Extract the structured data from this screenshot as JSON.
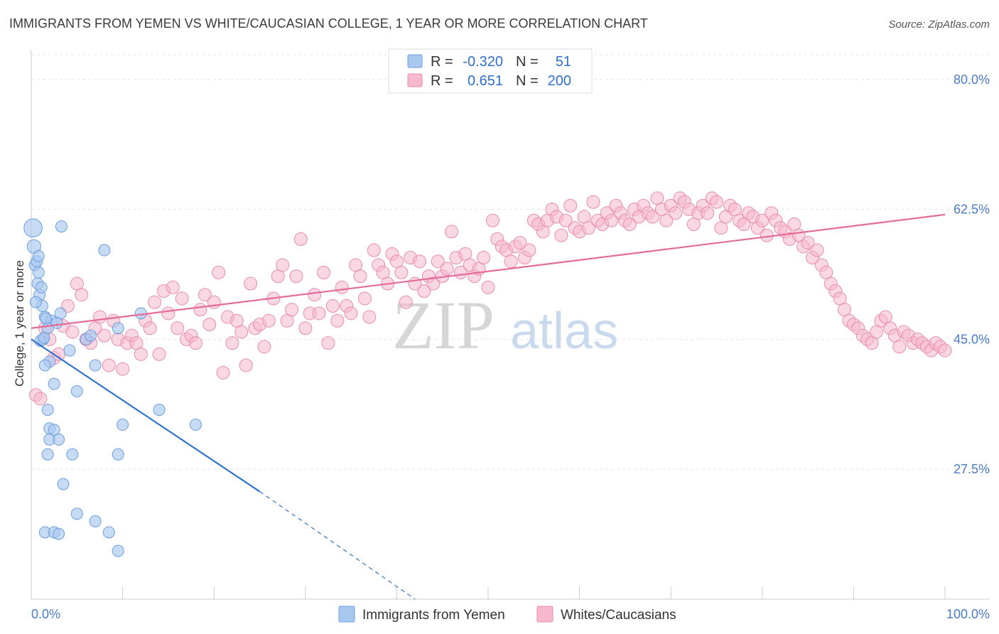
{
  "header": {
    "title": "IMMIGRANTS FROM YEMEN VS WHITE/CAUCASIAN COLLEGE, 1 YEAR OR MORE CORRELATION CHART",
    "source": "Source: ZipAtlas.com"
  },
  "watermark": {
    "zip": "ZIP",
    "atlas": "atlas"
  },
  "legend": {
    "rows": [
      {
        "r_label": "R =",
        "r_value": "-0.320",
        "n_label": "N =",
        "n_value": "51",
        "color": "#a9c8ef"
      },
      {
        "r_label": "R =",
        "r_value": "0.651",
        "n_label": "N =",
        "n_value": "200",
        "color": "#f6b8cc"
      }
    ]
  },
  "bottom_legend": {
    "items": [
      {
        "label": "Immigrants from Yemen",
        "color": "#a9c8ef"
      },
      {
        "label": "Whites/Caucasians",
        "color": "#f6b8cc"
      }
    ]
  },
  "chart_data": {
    "type": "scatter",
    "title": "IMMIGRANTS FROM YEMEN VS WHITE/CAUCASIAN COLLEGE, 1 YEAR OR MORE CORRELATION CHART",
    "xlabel": "",
    "ylabel": "College, 1 year or more",
    "xlim": [
      0,
      100
    ],
    "ylim": [
      10,
      84
    ],
    "x_ticks": [
      "0.0%",
      "100.0%"
    ],
    "y_ticks": [
      {
        "value": 80.0,
        "label": "80.0%"
      },
      {
        "value": 62.5,
        "label": "62.5%"
      },
      {
        "value": 45.0,
        "label": "45.0%"
      },
      {
        "value": 27.5,
        "label": "27.5%"
      }
    ],
    "grid": true,
    "legend_position": "top-center",
    "series": [
      {
        "name": "Immigrants from Yemen",
        "color": "#a9c8ef",
        "stroke": "#6d9fdd",
        "trend": {
          "x": [
            0,
            25
          ],
          "y": [
            45.0,
            24.5
          ],
          "dashed_to": [
            42,
            10
          ],
          "color": "#2f74d0"
        },
        "points": [
          [
            0.2,
            60.0,
            1.6
          ],
          [
            0.3,
            57.5,
            1.2
          ],
          [
            0.4,
            55.0,
            1
          ],
          [
            0.6,
            55.5,
            1
          ],
          [
            0.8,
            54.0,
            1
          ],
          [
            0.7,
            52.5,
            1
          ],
          [
            0.9,
            51.0,
            1
          ],
          [
            1.2,
            49.5,
            1
          ],
          [
            0.5,
            50.0,
            1
          ],
          [
            1.5,
            48.0,
            1
          ],
          [
            2.2,
            47.5,
            1
          ],
          [
            1.8,
            46.5,
            1
          ],
          [
            1.3,
            45.0,
            1
          ],
          [
            1.0,
            44.8,
            1
          ],
          [
            1.4,
            45.2,
            1
          ],
          [
            2.0,
            42.0,
            1
          ],
          [
            1.5,
            41.5,
            1
          ],
          [
            2.5,
            39.0,
            1
          ],
          [
            3.2,
            48.5,
            1
          ],
          [
            6.0,
            45.0,
            1
          ],
          [
            4.2,
            43.5,
            1
          ],
          [
            7.0,
            41.5,
            1
          ],
          [
            5.0,
            38.0,
            1
          ],
          [
            8.0,
            57.0,
            1
          ],
          [
            9.5,
            46.5,
            1
          ],
          [
            12.0,
            48.5,
            1
          ],
          [
            1.8,
            35.5,
            1
          ],
          [
            2.0,
            33.0,
            1
          ],
          [
            2.5,
            32.8,
            1
          ],
          [
            2.0,
            31.5,
            1
          ],
          [
            3.0,
            31.5,
            1
          ],
          [
            1.8,
            29.5,
            1
          ],
          [
            4.5,
            29.5,
            1
          ],
          [
            9.5,
            29.5,
            1
          ],
          [
            10.0,
            33.5,
            1
          ],
          [
            14.0,
            35.5,
            1
          ],
          [
            18.0,
            33.5,
            1
          ],
          [
            3.5,
            25.5,
            1
          ],
          [
            5.0,
            21.5,
            1
          ],
          [
            7.0,
            20.5,
            1
          ],
          [
            1.5,
            19.0,
            1
          ],
          [
            2.5,
            19.0,
            1
          ],
          [
            3.0,
            18.8,
            1
          ],
          [
            8.5,
            19.0,
            1
          ],
          [
            9.5,
            16.5,
            1
          ],
          [
            3.3,
            60.2,
            1
          ],
          [
            1.6,
            47.8,
            1
          ],
          [
            2.8,
            47.2,
            1
          ],
          [
            0.8,
            56.2,
            1
          ],
          [
            1.1,
            52.0,
            1
          ],
          [
            6.5,
            45.5,
            1
          ]
        ]
      },
      {
        "name": "Whites/Caucasians",
        "color": "#f6b8cc",
        "stroke": "#e98cab",
        "trend": {
          "x": [
            0,
            100
          ],
          "y": [
            46.5,
            61.8
          ],
          "color": "#e56b98"
        },
        "points": [
          [
            0.5,
            37.5
          ],
          [
            1.0,
            37.0
          ],
          [
            1.5,
            46.5
          ],
          [
            2.0,
            45.0
          ],
          [
            2.5,
            42.5
          ],
          [
            3.0,
            43.0
          ],
          [
            3.5,
            46.8
          ],
          [
            4.0,
            49.5
          ],
          [
            4.5,
            46.0
          ],
          [
            5.0,
            52.5
          ],
          [
            5.5,
            51.0
          ],
          [
            6.0,
            45.0
          ],
          [
            6.5,
            44.5
          ],
          [
            7.0,
            46.5
          ],
          [
            7.5,
            48.0
          ],
          [
            8.0,
            45.5
          ],
          [
            8.5,
            41.5
          ],
          [
            9.0,
            47.5
          ],
          [
            9.5,
            45.0
          ],
          [
            10.0,
            41.0
          ],
          [
            10.5,
            44.5
          ],
          [
            11.0,
            45.5
          ],
          [
            11.5,
            44.5
          ],
          [
            12.0,
            43.0
          ],
          [
            12.5,
            47.5
          ],
          [
            13.0,
            46.5
          ],
          [
            13.5,
            50.0
          ],
          [
            14.0,
            43.0
          ],
          [
            14.5,
            51.5
          ],
          [
            15.0,
            48.5
          ],
          [
            15.5,
            52.0
          ],
          [
            16.0,
            46.5
          ],
          [
            16.5,
            50.5
          ],
          [
            17.0,
            45.0
          ],
          [
            17.5,
            45.5
          ],
          [
            18.0,
            44.5
          ],
          [
            18.5,
            49.0
          ],
          [
            19.0,
            51.0
          ],
          [
            19.5,
            47.0
          ],
          [
            20.0,
            50.0
          ],
          [
            20.5,
            54.0
          ],
          [
            21.0,
            40.5
          ],
          [
            21.5,
            48.0
          ],
          [
            22.0,
            44.5
          ],
          [
            22.5,
            47.5
          ],
          [
            23.0,
            46.0
          ],
          [
            23.5,
            41.5
          ],
          [
            24.0,
            52.5
          ],
          [
            24.5,
            46.5
          ],
          [
            25.0,
            47.0
          ],
          [
            25.5,
            44.0
          ],
          [
            26.0,
            47.5
          ],
          [
            26.5,
            50.5
          ],
          [
            27.0,
            53.5
          ],
          [
            27.5,
            55.0
          ],
          [
            28.0,
            47.5
          ],
          [
            28.5,
            49.0
          ],
          [
            29.0,
            53.5
          ],
          [
            29.5,
            58.5
          ],
          [
            30.0,
            46.5
          ],
          [
            30.5,
            48.5
          ],
          [
            31.0,
            51.0
          ],
          [
            31.5,
            48.5
          ],
          [
            32.0,
            54.0
          ],
          [
            32.5,
            44.5
          ],
          [
            33.0,
            49.5
          ],
          [
            33.5,
            47.5
          ],
          [
            34.0,
            52.0
          ],
          [
            34.5,
            49.5
          ],
          [
            35.0,
            48.5
          ],
          [
            35.5,
            55.0
          ],
          [
            36.0,
            53.5
          ],
          [
            36.5,
            50.5
          ],
          [
            37.0,
            48.0
          ],
          [
            37.5,
            57.0
          ],
          [
            38.0,
            55.0
          ],
          [
            38.5,
            54.0
          ],
          [
            39.0,
            52.5
          ],
          [
            39.5,
            56.5
          ],
          [
            40.0,
            55.5
          ],
          [
            40.5,
            54.0
          ],
          [
            41.0,
            50.0
          ],
          [
            41.5,
            56.0
          ],
          [
            42.0,
            52.5
          ],
          [
            42.5,
            55.5
          ],
          [
            43.0,
            51.5
          ],
          [
            43.5,
            53.5
          ],
          [
            44.0,
            52.5
          ],
          [
            44.5,
            55.5
          ],
          [
            45.0,
            53.5
          ],
          [
            45.5,
            54.5
          ],
          [
            46.0,
            59.5
          ],
          [
            46.5,
            56.0
          ],
          [
            47.0,
            54.0
          ],
          [
            47.5,
            56.5
          ],
          [
            48.0,
            55.0
          ],
          [
            48.5,
            53.5
          ],
          [
            49.0,
            54.5
          ],
          [
            49.5,
            56.0
          ],
          [
            50.0,
            52.0
          ],
          [
            50.5,
            61.0
          ],
          [
            51.0,
            58.5
          ],
          [
            51.5,
            57.5
          ],
          [
            52.0,
            57.0
          ],
          [
            52.5,
            55.5
          ],
          [
            53.0,
            57.5
          ],
          [
            53.5,
            58.0
          ],
          [
            54.0,
            56.0
          ],
          [
            54.5,
            57.0
          ],
          [
            55.0,
            61.0
          ],
          [
            55.5,
            60.5
          ],
          [
            56.0,
            59.5
          ],
          [
            56.5,
            61.0
          ],
          [
            57.0,
            62.5
          ],
          [
            57.5,
            61.5
          ],
          [
            58.0,
            59.0
          ],
          [
            58.5,
            61.0
          ],
          [
            59.0,
            63.0
          ],
          [
            59.5,
            60.0
          ],
          [
            60.0,
            59.5
          ],
          [
            60.5,
            61.5
          ],
          [
            61.0,
            60.0
          ],
          [
            61.5,
            63.5
          ],
          [
            62.0,
            61.0
          ],
          [
            62.5,
            60.5
          ],
          [
            63.0,
            62.0
          ],
          [
            63.5,
            61.0
          ],
          [
            64.0,
            63.0
          ],
          [
            64.5,
            62.0
          ],
          [
            65.0,
            61.0
          ],
          [
            65.5,
            60.5
          ],
          [
            66.0,
            62.5
          ],
          [
            66.5,
            61.5
          ],
          [
            67.0,
            63.0
          ],
          [
            67.5,
            62.0
          ],
          [
            68.0,
            61.5
          ],
          [
            68.5,
            64.0
          ],
          [
            69.0,
            62.5
          ],
          [
            69.5,
            61.0
          ],
          [
            70.0,
            63.0
          ],
          [
            70.5,
            62.0
          ],
          [
            71.0,
            64.0
          ],
          [
            71.5,
            63.5
          ],
          [
            72.0,
            62.5
          ],
          [
            72.5,
            60.5
          ],
          [
            73.0,
            62.0
          ],
          [
            73.5,
            63.0
          ],
          [
            74.0,
            62.0
          ],
          [
            74.5,
            64.0
          ],
          [
            75.0,
            63.5
          ],
          [
            75.5,
            60.0
          ],
          [
            76.0,
            61.5
          ],
          [
            76.5,
            63.0
          ],
          [
            77.0,
            62.5
          ],
          [
            77.5,
            61.0
          ],
          [
            78.0,
            60.5
          ],
          [
            78.5,
            62.0
          ],
          [
            79.0,
            61.5
          ],
          [
            79.5,
            60.0
          ],
          [
            80.0,
            61.0
          ],
          [
            80.5,
            59.0
          ],
          [
            81.0,
            62.0
          ],
          [
            81.5,
            61.0
          ],
          [
            82.0,
            60.0
          ],
          [
            82.5,
            59.5
          ],
          [
            83.0,
            58.5
          ],
          [
            83.5,
            60.5
          ],
          [
            84.0,
            59.0
          ],
          [
            84.5,
            57.5
          ],
          [
            85.0,
            58.0
          ],
          [
            85.5,
            56.0
          ],
          [
            86.0,
            57.0
          ],
          [
            86.5,
            55.0
          ],
          [
            87.0,
            54.0
          ],
          [
            87.5,
            52.5
          ],
          [
            88.0,
            51.5
          ],
          [
            88.5,
            50.5
          ],
          [
            89.0,
            49.0
          ],
          [
            89.5,
            47.5
          ],
          [
            90.0,
            47.0
          ],
          [
            90.5,
            46.5
          ],
          [
            91.0,
            45.5
          ],
          [
            91.5,
            45.0
          ],
          [
            92.0,
            44.5
          ],
          [
            92.5,
            46.0
          ],
          [
            93.0,
            47.5
          ],
          [
            93.5,
            48.0
          ],
          [
            94.0,
            46.5
          ],
          [
            94.5,
            45.5
          ],
          [
            95.0,
            44.0
          ],
          [
            95.5,
            46.0
          ],
          [
            96.0,
            45.5
          ],
          [
            96.5,
            44.5
          ],
          [
            97.0,
            45.0
          ],
          [
            97.5,
            44.5
          ],
          [
            98.0,
            44.0
          ],
          [
            98.5,
            43.5
          ],
          [
            99.0,
            44.5
          ],
          [
            99.5,
            44.0
          ],
          [
            100.0,
            43.5
          ]
        ]
      }
    ]
  }
}
